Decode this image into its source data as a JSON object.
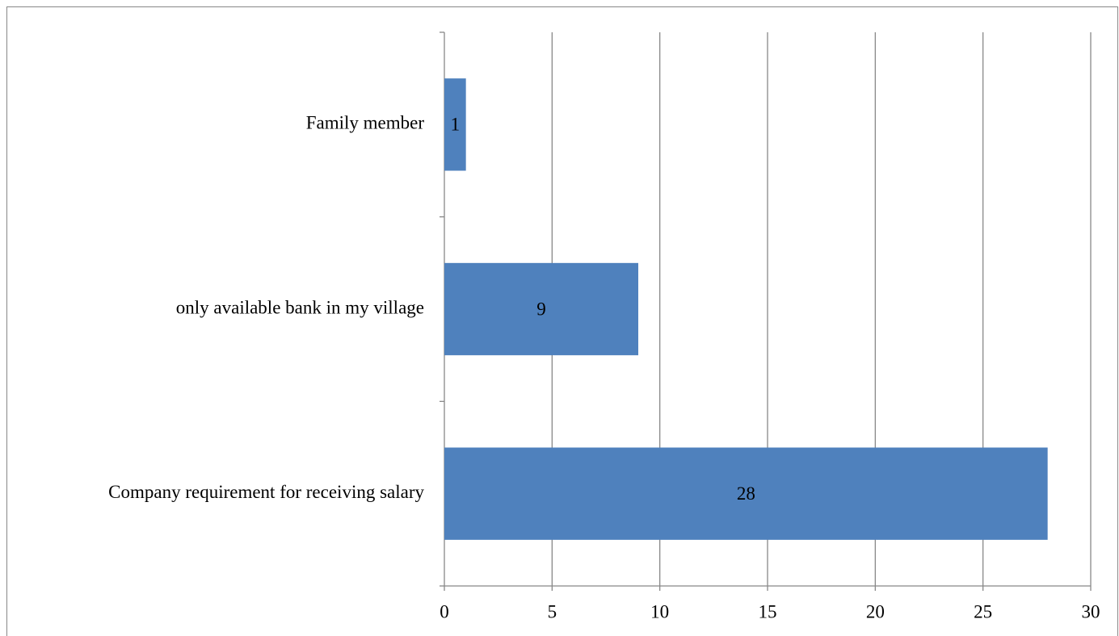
{
  "chart_data": {
    "type": "barh",
    "categories": [
      "Family member",
      "only available bank in my village",
      "Company requirement for receiving salary"
    ],
    "values": [
      1,
      9,
      28
    ],
    "color": "#4f81bd",
    "xlim": [
      0,
      30
    ],
    "xticks": [
      0,
      5,
      10,
      15,
      20,
      25,
      30
    ],
    "grid": true
  }
}
